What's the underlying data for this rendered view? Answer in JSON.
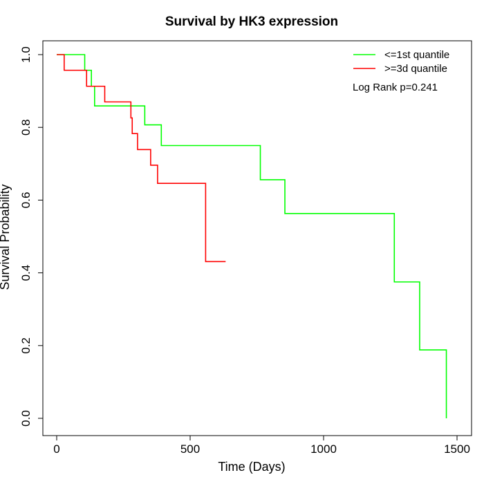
{
  "chart_data": {
    "type": "line",
    "step": true,
    "title": "Survival by HK3 expression",
    "xlabel": "Time (Days)",
    "ylabel": "Survival Probability",
    "xlim": [
      0,
      1500
    ],
    "ylim": [
      0,
      1
    ],
    "xticks": [
      "0",
      "500",
      "1000",
      "1500"
    ],
    "yticks": [
      "0.0",
      "0.2",
      "0.4",
      "0.6",
      "0.8",
      "1.0"
    ],
    "legend_position": "top-right",
    "annotation": "Log Rank p=0.241",
    "series": [
      {
        "name": "<=1st quantile",
        "color": "#00ff00",
        "points": [
          [
            0,
            1.0
          ],
          [
            105,
            0.957
          ],
          [
            130,
            0.913
          ],
          [
            142,
            0.859
          ],
          [
            330,
            0.807
          ],
          [
            392,
            0.75
          ],
          [
            763,
            0.656
          ],
          [
            855,
            0.563
          ],
          [
            1265,
            0.375
          ],
          [
            1360,
            0.188
          ],
          [
            1460,
            0.0
          ]
        ]
      },
      {
        "name": ">=3d quantile",
        "color": "#ff0000",
        "points": [
          [
            0,
            1.0
          ],
          [
            28,
            0.957
          ],
          [
            112,
            0.913
          ],
          [
            180,
            0.87
          ],
          [
            278,
            0.826
          ],
          [
            283,
            0.783
          ],
          [
            303,
            0.739
          ],
          [
            352,
            0.696
          ],
          [
            378,
            0.646
          ],
          [
            558,
            0.431
          ],
          [
            633,
            0.431
          ]
        ]
      }
    ]
  }
}
